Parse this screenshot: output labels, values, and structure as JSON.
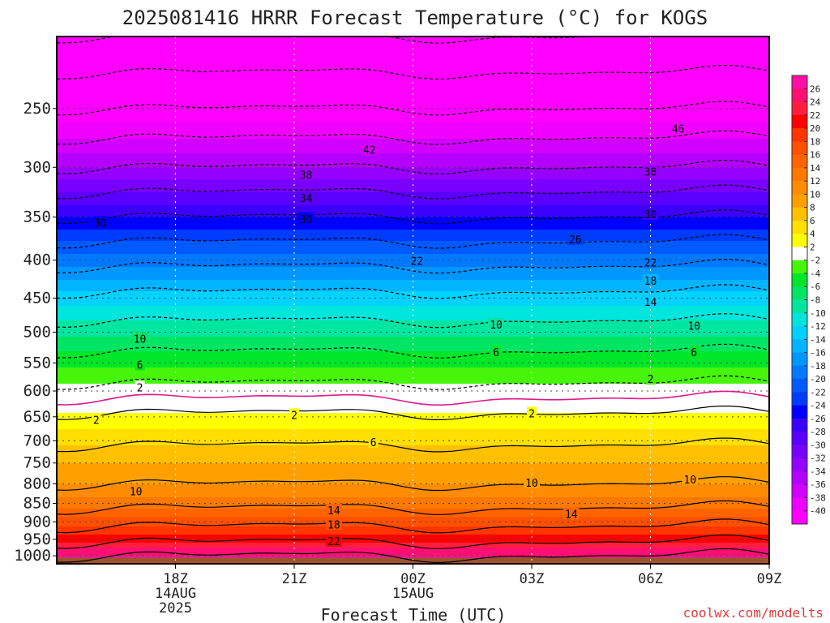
{
  "chart_data": {
    "type": "heatmap",
    "title": "2025081416 HRRR Forecast Temperature (°C) for KOGS",
    "xlabel": "Forecast Time (UTC)",
    "ylabel": "",
    "credit": "coolwx.com/modelts",
    "x_range_hours": [
      15,
      33
    ],
    "x_ticks": [
      {
        "hour": 18,
        "lines": [
          "18Z",
          "14AUG",
          "2025"
        ]
      },
      {
        "hour": 21,
        "lines": [
          "21Z"
        ]
      },
      {
        "hour": 24,
        "lines": [
          "00Z",
          "15AUG"
        ]
      },
      {
        "hour": 27,
        "lines": [
          "03Z"
        ]
      },
      {
        "hour": 30,
        "lines": [
          "06Z"
        ]
      },
      {
        "hour": 33,
        "lines": [
          "09Z"
        ]
      }
    ],
    "y_scale": "log",
    "y_range_hpa": [
      1025,
      200
    ],
    "y_ticks": [
      250,
      300,
      350,
      400,
      450,
      500,
      550,
      600,
      650,
      700,
      750,
      800,
      850,
      900,
      950,
      1000
    ],
    "colorbar": {
      "ticks": [
        26,
        24,
        22,
        20,
        18,
        16,
        14,
        12,
        10,
        8,
        6,
        4,
        2,
        -2,
        -4,
        -6,
        -8,
        -10,
        -12,
        -14,
        -16,
        -18,
        -20,
        -22,
        -24,
        -26,
        -28,
        -30,
        -32,
        -34,
        -36,
        -38,
        -40
      ],
      "colors": [
        "#ff0fa5",
        "#ff0f73",
        "#ff1e3c",
        "#ff0000",
        "#ff3600",
        "#ff5000",
        "#ff6400",
        "#ff7800",
        "#ff8c00",
        "#ffa000",
        "#ffc000",
        "#ffe000",
        "#ffff00",
        "#ffffff",
        "#46f50a",
        "#00e628",
        "#00e664",
        "#00e6a0",
        "#00e6dc",
        "#00d2ff",
        "#00b4ff",
        "#0096ff",
        "#0078ff",
        "#005aff",
        "#003cff",
        "#0000ff",
        "#3c00ff",
        "#5a00ff",
        "#7800ff",
        "#9600ff",
        "#b400ff",
        "#d200ff",
        "#f000ff",
        "#ff00ff"
      ]
    },
    "temperature_levels": [
      {
        "p": 1000,
        "t": 26
      },
      {
        "p": 975,
        "t": 24
      },
      {
        "p": 950,
        "t": 21
      },
      {
        "p": 925,
        "t": 19
      },
      {
        "p": 900,
        "t": 17
      },
      {
        "p": 850,
        "t": 13
      },
      {
        "p": 800,
        "t": 10
      },
      {
        "p": 750,
        "t": 8
      },
      {
        "p": 700,
        "t": 5.5
      },
      {
        "p": 650,
        "t": 2.5
      },
      {
        "p": 600,
        "t": -1
      },
      {
        "p": 550,
        "t": -4.5
      },
      {
        "p": 500,
        "t": -8.5
      },
      {
        "p": 450,
        "t": -13
      },
      {
        "p": 400,
        "t": -19
      },
      {
        "p": 350,
        "t": -26
      },
      {
        "p": 300,
        "t": -34
      },
      {
        "p": 250,
        "t": -42
      },
      {
        "p": 200,
        "t": -50
      }
    ],
    "ground_color": "#a0522d",
    "contour_labels": [
      {
        "label": "46",
        "hour": 30.7,
        "p": 266
      },
      {
        "label": "42",
        "hour": 22.9,
        "p": 284
      },
      {
        "label": "38",
        "hour": 21.3,
        "p": 307
      },
      {
        "label": "38",
        "hour": 30.0,
        "p": 304
      },
      {
        "label": "34",
        "hour": 21.3,
        "p": 330
      },
      {
        "label": "30",
        "hour": 16.1,
        "p": 356
      },
      {
        "label": "30",
        "hour": 21.3,
        "p": 352
      },
      {
        "label": "30",
        "hour": 30.0,
        "p": 347
      },
      {
        "label": "26",
        "hour": 28.1,
        "p": 375
      },
      {
        "label": "22",
        "hour": 24.1,
        "p": 401
      },
      {
        "label": "22",
        "hour": 30.0,
        "p": 403
      },
      {
        "label": "18",
        "hour": 30.0,
        "p": 426
      },
      {
        "label": "14",
        "hour": 30.0,
        "p": 455
      },
      {
        "label": "10",
        "hour": 17.1,
        "p": 510
      },
      {
        "label": "10",
        "hour": 26.1,
        "p": 488
      },
      {
        "label": "10",
        "hour": 31.1,
        "p": 490
      },
      {
        "label": "6",
        "hour": 17.1,
        "p": 553
      },
      {
        "label": "6",
        "hour": 26.1,
        "p": 532
      },
      {
        "label": "6",
        "hour": 31.1,
        "p": 532
      },
      {
        "label": "2",
        "hour": 17.1,
        "p": 593
      },
      {
        "label": "2",
        "hour": 30.0,
        "p": 578
      },
      {
        "label": "2",
        "hour": 16.0,
        "p": 656
      },
      {
        "label": "2",
        "hour": 21.0,
        "p": 646
      },
      {
        "label": "2",
        "hour": 27.0,
        "p": 643
      },
      {
        "label": "6",
        "hour": 23.0,
        "p": 703
      },
      {
        "label": "10",
        "hour": 17.0,
        "p": 818
      },
      {
        "label": "10",
        "hour": 27.0,
        "p": 797
      },
      {
        "label": "10",
        "hour": 31.0,
        "p": 789
      },
      {
        "label": "14",
        "hour": 22.0,
        "p": 868
      },
      {
        "label": "14",
        "hour": 28.0,
        "p": 878
      },
      {
        "label": "18",
        "hour": 22.0,
        "p": 907
      },
      {
        "label": "22",
        "hour": 22.0,
        "p": 955
      }
    ]
  }
}
